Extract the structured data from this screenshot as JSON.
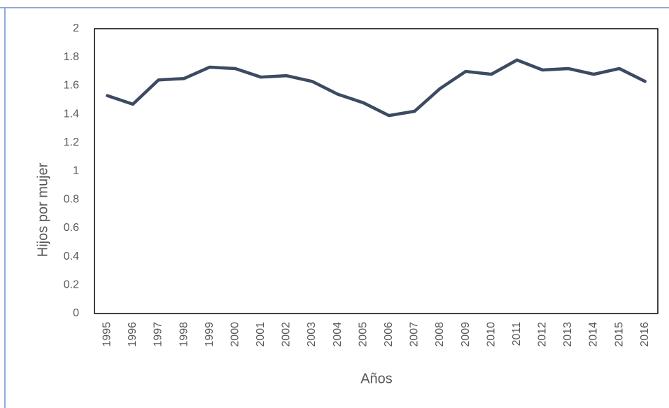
{
  "chart_data": {
    "type": "line",
    "x_label": "Años",
    "y_label": "Hijos por mujer",
    "categories": [
      "1995",
      "1996",
      "1997",
      "1998",
      "1999",
      "2000",
      "2001",
      "2002",
      "2003",
      "2004",
      "2005",
      "2006",
      "2007",
      "2008",
      "2009",
      "2010",
      "2011",
      "2012",
      "2013",
      "2014",
      "2015",
      "2016"
    ],
    "values": [
      1.53,
      1.47,
      1.64,
      1.65,
      1.73,
      1.72,
      1.66,
      1.67,
      1.63,
      1.54,
      1.48,
      1.39,
      1.42,
      1.58,
      1.7,
      1.68,
      1.78,
      1.71,
      1.72,
      1.68,
      1.72,
      1.63
    ],
    "color": "#3c4a62",
    "ylim": [
      0,
      2
    ],
    "yticks": [
      0,
      0.2,
      0.4,
      0.6,
      0.8,
      1,
      1.2,
      1.4,
      1.6,
      1.8,
      2
    ],
    "grid": false
  }
}
